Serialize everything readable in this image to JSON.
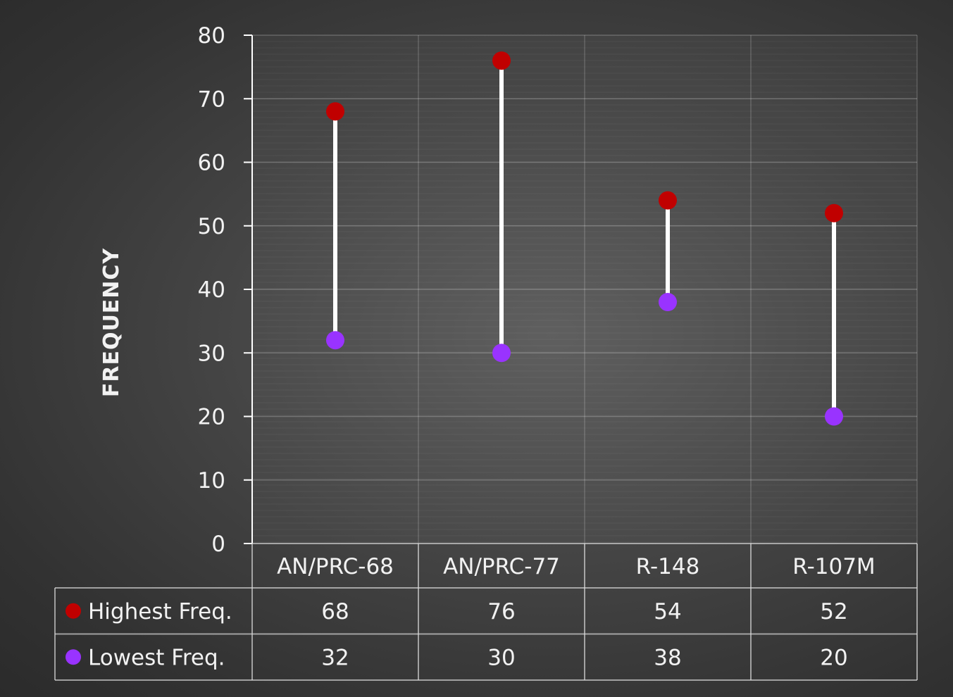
{
  "chart_data": {
    "type": "dumbbell",
    "title": "",
    "xlabel": "",
    "ylabel": "FREQUENCY",
    "ylim": [
      0,
      80
    ],
    "yticks": [
      0,
      10,
      20,
      30,
      40,
      50,
      60,
      70,
      80
    ],
    "grid": true,
    "legend_placement": "data-table-left",
    "categories": [
      "AN/PRC-68",
      "AN/PRC-77",
      "R-148",
      "R-107M"
    ],
    "series": [
      {
        "name": "Highest Freq.",
        "color": "#c00000",
        "values": [
          68,
          76,
          54,
          52
        ]
      },
      {
        "name": "Lowest Freq.",
        "color": "#9933ff",
        "values": [
          32,
          30,
          38,
          20
        ]
      }
    ],
    "connector_color": "#ffffff"
  }
}
